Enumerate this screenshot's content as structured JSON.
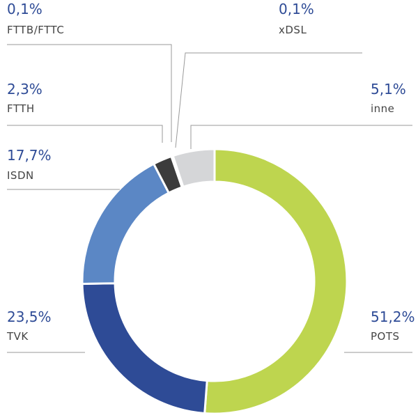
{
  "chart_data": {
    "type": "donut",
    "categories": [
      "POTS",
      "TVK",
      "ISDN",
      "FTTH",
      "FTTB/FTTC",
      "xDSL",
      "inne"
    ],
    "values": [
      51.2,
      23.5,
      17.7,
      2.3,
      0.1,
      0.1,
      5.1
    ],
    "value_labels": [
      "51,2%",
      "23,5%",
      "17,7%",
      "2,3%",
      "0,1%",
      "0,1%",
      "5,1%"
    ],
    "colors": [
      "#bed54f",
      "#2e4b96",
      "#5b87c5",
      "#3c3c3c",
      "#7a7a7a",
      "#a8a8a8",
      "#d5d6d8"
    ]
  }
}
